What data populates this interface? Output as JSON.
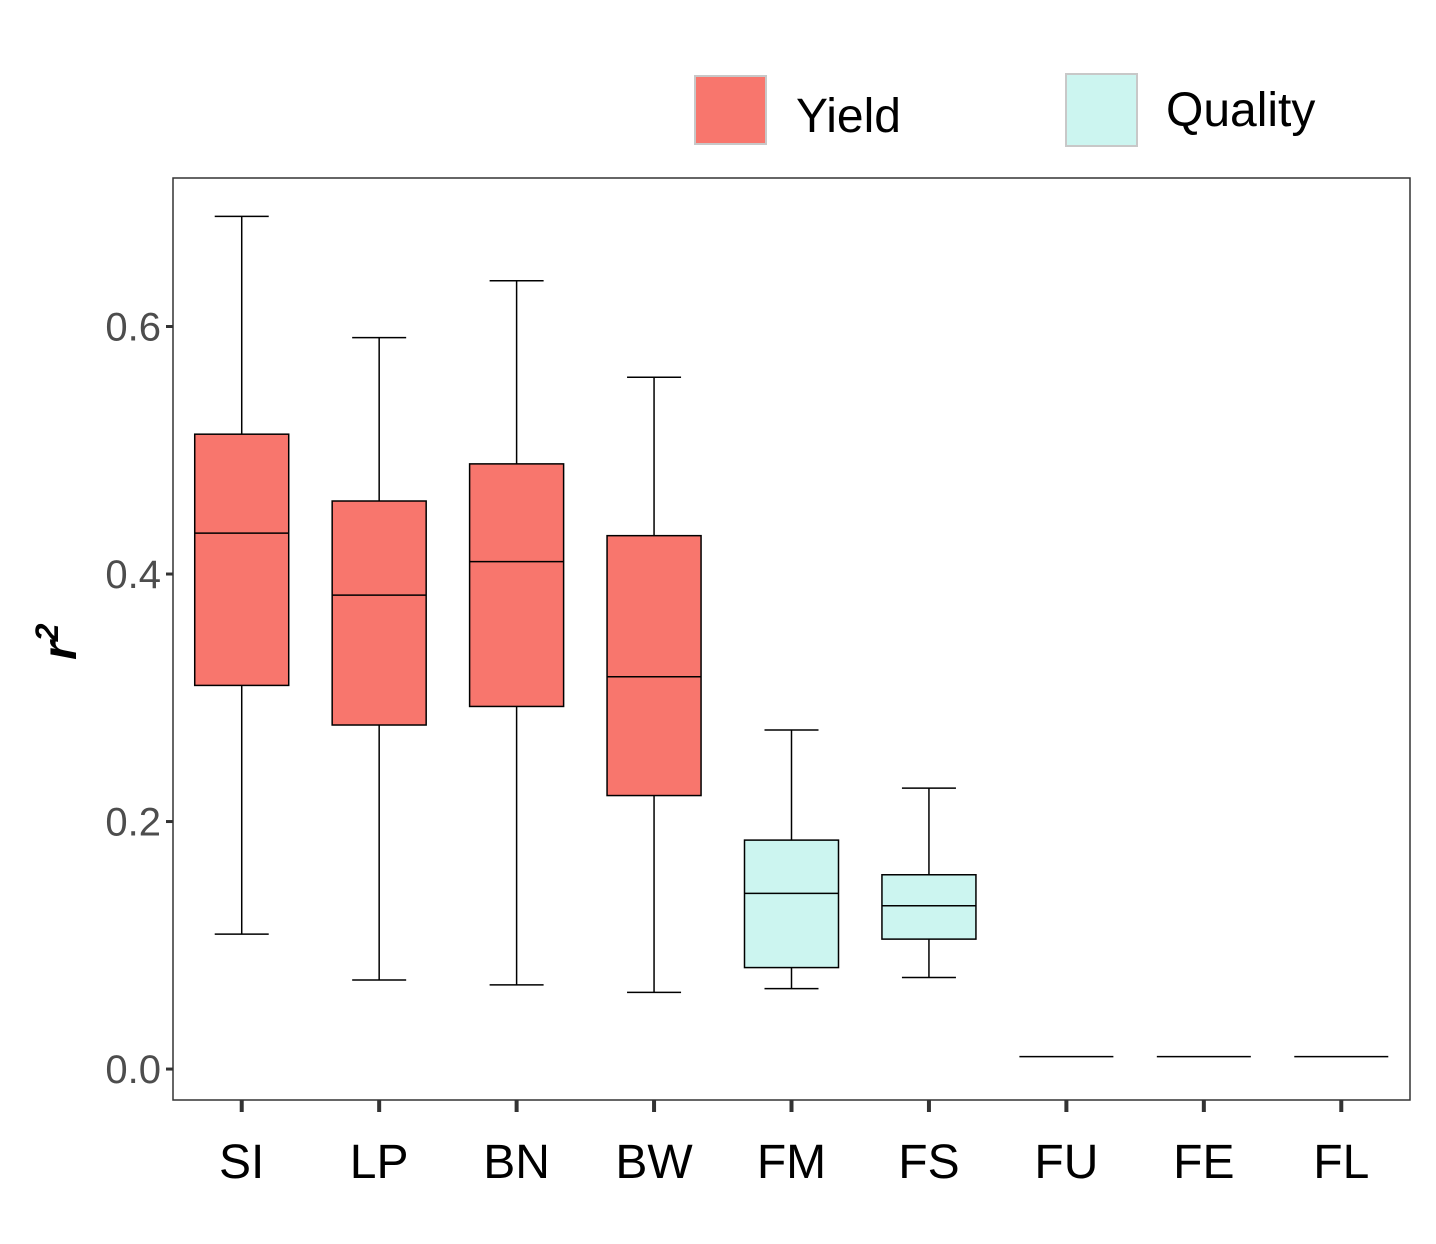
{
  "chart_data": {
    "type": "box",
    "ylabel": "r",
    "ylabel_superscript": "2",
    "ylim": [
      -0.025,
      0.72
    ],
    "yticks": [
      0.0,
      0.2,
      0.4,
      0.6
    ],
    "ytick_labels": [
      "0.0",
      "0.2",
      "0.4",
      "0.6"
    ],
    "grid": false,
    "legend_position": "top-right",
    "legend": [
      {
        "name": "Yield",
        "color": "#F8766D"
      },
      {
        "name": "Quality",
        "color": "#CCF5F0"
      }
    ],
    "categories": [
      "SI",
      "LP",
      "BN",
      "BW",
      "FM",
      "FS",
      "FU",
      "FE",
      "FL"
    ],
    "boxes": [
      {
        "category": "SI",
        "group": "Yield",
        "min": 0.109,
        "q1": 0.31,
        "median": 0.433,
        "q3": 0.513,
        "max": 0.689
      },
      {
        "category": "LP",
        "group": "Yield",
        "min": 0.072,
        "q1": 0.278,
        "median": 0.383,
        "q3": 0.459,
        "max": 0.591
      },
      {
        "category": "BN",
        "group": "Yield",
        "min": 0.068,
        "q1": 0.293,
        "median": 0.41,
        "q3": 0.489,
        "max": 0.637
      },
      {
        "category": "BW",
        "group": "Yield",
        "min": 0.062,
        "q1": 0.221,
        "median": 0.317,
        "q3": 0.431,
        "max": 0.559
      },
      {
        "category": "FM",
        "group": "Quality",
        "min": 0.065,
        "q1": 0.082,
        "median": 0.142,
        "q3": 0.185,
        "max": 0.274
      },
      {
        "category": "FS",
        "group": "Quality",
        "min": 0.074,
        "q1": 0.105,
        "median": 0.132,
        "q3": 0.157,
        "max": 0.227
      },
      {
        "category": "FU",
        "group": "Quality",
        "min": 0.01,
        "q1": 0.01,
        "median": 0.01,
        "q3": 0.01,
        "max": 0.01
      },
      {
        "category": "FE",
        "group": "Quality",
        "min": 0.01,
        "q1": 0.01,
        "median": 0.01,
        "q3": 0.01,
        "max": 0.01
      },
      {
        "category": "FL",
        "group": "Quality",
        "min": 0.01,
        "q1": 0.01,
        "median": 0.01,
        "q3": 0.01,
        "max": 0.01
      }
    ]
  }
}
